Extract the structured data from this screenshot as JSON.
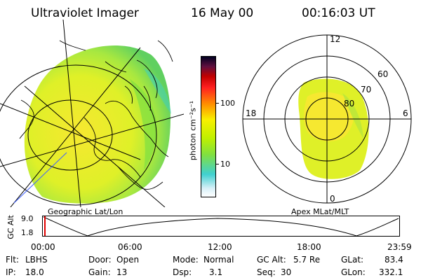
{
  "header": {
    "instrument": "Ultraviolet Imager",
    "date": "16 May 00",
    "time": "00:16:03 UT"
  },
  "geo_panel": {
    "caption": "Geographic Lat/Lon"
  },
  "polar_panel": {
    "caption": "Apex MLat/MLT",
    "mlt_labels": [
      "12",
      "18",
      "6",
      "0"
    ],
    "lat_labels": [
      "60",
      "70",
      "80"
    ]
  },
  "colorbar": {
    "unit_label": "photon cm⁻²s⁻¹",
    "tick_labels": [
      "100",
      "10"
    ],
    "scale": "log",
    "colors": [
      "#d8f0f8",
      "#40d0d0",
      "#80e040",
      "#c0f000",
      "#f8f000",
      "#ff9000",
      "#ff2020",
      "#c00000",
      "#601040",
      "#000020"
    ]
  },
  "altitude_strip": {
    "axis_label": "GC Alt",
    "y_ticks": [
      "9.0",
      "1.8"
    ],
    "x_ticks": [
      "00:00",
      "06:00",
      "12:00",
      "18:00",
      "23:59"
    ],
    "current_marker_time": "00:16"
  },
  "info": {
    "filter_label": "Flt:",
    "filter_value": "LBHS",
    "ip_label": "IP:",
    "ip_value": "18.0",
    "door_label": "Door:",
    "door_value": "Open",
    "gain_label": "Gain:",
    "gain_value": "13",
    "mode_label": "Mode:",
    "mode_value": "Normal",
    "dsp_label": "Dsp:",
    "dsp_value": "3.1",
    "gcalt_label": "GC Alt:",
    "gcalt_value": "5.7 Re",
    "seq_label": "Seq:",
    "seq_value": "30",
    "glat_label": "GLat:",
    "glat_value": "83.4",
    "glon_label": "GLon:",
    "glon_value": "332.1"
  }
}
